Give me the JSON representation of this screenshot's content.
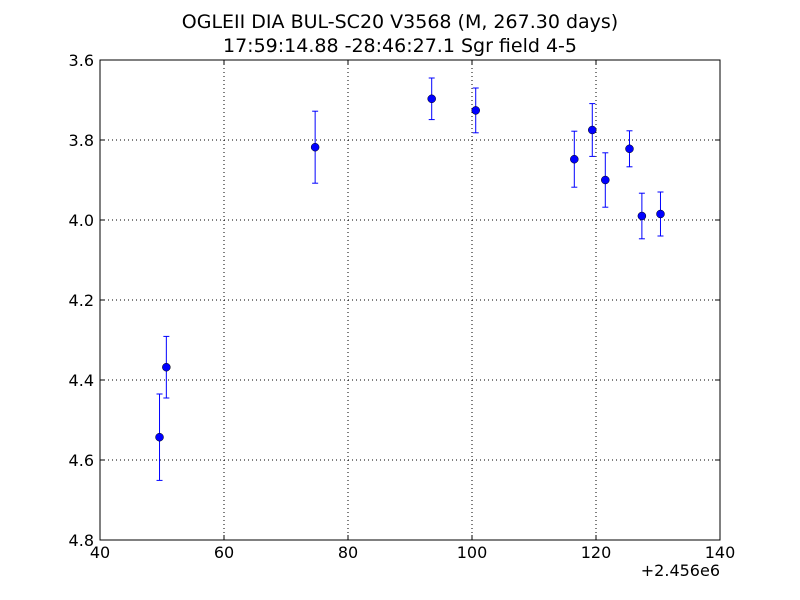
{
  "chart_data": {
    "type": "scatter",
    "title": "OGLEII DIA BUL-SC20 V3568 (M, 267.30 days)",
    "subtitle": "17:59:14.88 -28:46:27.1 Sgr field 4-5",
    "x_offset_label": "+2.456e6",
    "xlim": [
      40,
      140
    ],
    "ylim": [
      3.6,
      4.8
    ],
    "y_inverted": true,
    "xticks": [
      "40",
      "60",
      "80",
      "100",
      "120",
      "140"
    ],
    "yticks": [
      "3.6",
      "3.8",
      "4.0",
      "4.2",
      "4.4",
      "4.6",
      "4.8"
    ],
    "grid": true,
    "points": [
      {
        "x": 2456049.6,
        "y": 4.543,
        "err": 0.108
      },
      {
        "x": 2456050.7,
        "y": 4.368,
        "err": 0.077
      },
      {
        "x": 2456074.7,
        "y": 3.818,
        "err": 0.09
      },
      {
        "x": 2456093.5,
        "y": 3.697,
        "err": 0.052
      },
      {
        "x": 2456100.6,
        "y": 3.726,
        "err": 0.056
      },
      {
        "x": 2456116.5,
        "y": 3.848,
        "err": 0.07
      },
      {
        "x": 2456119.4,
        "y": 3.775,
        "err": 0.066
      },
      {
        "x": 2456121.5,
        "y": 3.9,
        "err": 0.068
      },
      {
        "x": 2456125.4,
        "y": 3.822,
        "err": 0.045
      },
      {
        "x": 2456127.4,
        "y": 3.99,
        "err": 0.057
      },
      {
        "x": 2456130.4,
        "y": 3.985,
        "err": 0.055
      }
    ],
    "colors": {
      "marker": "#0000ff",
      "errorbar": "#0000ff",
      "axes": "#000000",
      "grid": "#000000"
    }
  }
}
